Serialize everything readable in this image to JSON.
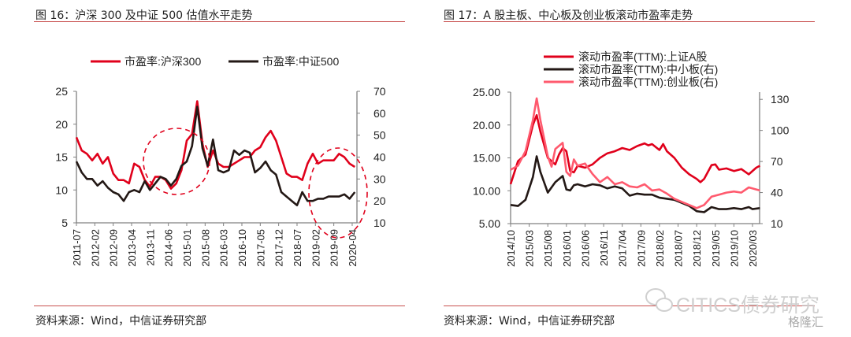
{
  "colors": {
    "red": "#e0001b",
    "black": "#231815",
    "pink": "#ff5a6e",
    "rule": "#c9504f"
  },
  "fig16": {
    "title": "图 16：沪深 300 及中证 500 估值水平走势",
    "source": "资料来源：Wind，中信证券研究部"
  },
  "fig17": {
    "title": "图 17：A 股主板、中心板及创业板滚动市盈率走势",
    "source": "资料来源：Wind，中信证券研究部"
  },
  "watermark": {
    "text": "CITICS债券研究",
    "logo": "格隆汇"
  },
  "chart_data": [
    {
      "type": "line",
      "title": "图 16：沪深 300 及中证 500 估值水平走势",
      "x_unit": "months since 2011-07",
      "xticks": [
        "2011-07",
        "2012-02",
        "2012-09",
        "2013-04",
        "2013-11",
        "2014-06",
        "2015-01",
        "2015-08",
        "2016-03",
        "2016-10",
        "2017-05",
        "2017-12",
        "2018-07",
        "2019-02",
        "2019-09",
        "2020-04"
      ],
      "xtick_step_months": 7,
      "xlim": [
        0,
        107
      ],
      "ylim_left": [
        5,
        25
      ],
      "yticks_left": [
        "5",
        "10",
        "15",
        "20",
        "25"
      ],
      "ylim_right": [
        10,
        70
      ],
      "yticks_right": [
        "10",
        "20",
        "30",
        "40",
        "50",
        "60",
        "70"
      ],
      "legend_position": "top",
      "series": [
        {
          "name": "市盈率:沪深300",
          "axis": "left",
          "color": "#e0001b",
          "x": [
            0,
            2,
            4,
            6,
            8,
            10,
            12,
            14,
            16,
            18,
            20,
            22,
            24,
            26,
            28,
            30,
            32,
            34,
            36,
            38,
            40,
            42,
            44,
            46,
            48,
            50,
            52,
            54,
            56,
            58,
            60,
            62,
            64,
            66,
            68,
            70,
            72,
            74,
            76,
            78,
            80,
            82,
            84,
            86,
            88,
            90,
            92,
            94,
            96,
            98,
            100,
            102,
            104,
            106
          ],
          "y": [
            18,
            16,
            15.5,
            14.5,
            15.5,
            14,
            15,
            12.5,
            11.5,
            11.5,
            11,
            14,
            13.5,
            11.5,
            10.5,
            12,
            12,
            11.5,
            10.2,
            11,
            13,
            17.5,
            18.5,
            23.5,
            17,
            13.5,
            16,
            14,
            13.5,
            13.5,
            14,
            14.5,
            15,
            15,
            16,
            16.5,
            18,
            19,
            17.5,
            15,
            12.5,
            12,
            12,
            11.5,
            14,
            15.5,
            14,
            14.5,
            14.5,
            14.5,
            15.5,
            15,
            14,
            13.5
          ]
        },
        {
          "name": "市盈率:中证500",
          "axis": "right",
          "color": "#231815",
          "x": [
            0,
            2,
            4,
            6,
            8,
            10,
            12,
            14,
            16,
            18,
            20,
            22,
            24,
            26,
            28,
            30,
            32,
            34,
            36,
            38,
            40,
            42,
            44,
            46,
            48,
            50,
            52,
            54,
            56,
            58,
            60,
            62,
            64,
            66,
            68,
            70,
            72,
            74,
            76,
            78,
            80,
            82,
            84,
            86,
            88,
            90,
            92,
            94,
            96,
            98,
            100,
            102,
            104,
            106
          ],
          "y": [
            38,
            33,
            30,
            30,
            27,
            29,
            26,
            24,
            23,
            20,
            24,
            25,
            24,
            29,
            25,
            28,
            31,
            30,
            27,
            30,
            36,
            38,
            45,
            63,
            44,
            36,
            48,
            34,
            33,
            34,
            43,
            41,
            43,
            42,
            33,
            35,
            38,
            34,
            32,
            24,
            22,
            20,
            18,
            24,
            20,
            20,
            21,
            21,
            22,
            22,
            22,
            23,
            21,
            24
          ]
        }
      ]
    },
    {
      "type": "line",
      "title": "图 17：A 股主板、中心板及创业板滚动市盈率走势",
      "x_unit": "months since 2014-10",
      "xticks": [
        "2014/10",
        "2015/03",
        "2015/08",
        "2016/01",
        "2016/06",
        "2016/11",
        "2017/04",
        "2017/09",
        "2018/02",
        "2018/07",
        "2018/12",
        "2019/05",
        "2019/10",
        "2020/03"
      ],
      "xtick_step_months": 5,
      "xlim": [
        0,
        67
      ],
      "ylim_left": [
        5,
        25
      ],
      "yticks_left": [
        "5.00",
        "10.00",
        "15.00",
        "20.00",
        "25.00"
      ],
      "ylim_right": [
        10,
        137
      ],
      "yticks_right": [
        "10",
        "40",
        "70",
        "100",
        "130"
      ],
      "legend_position": "top",
      "series": [
        {
          "name": "滚动市盈率(TTM):上证A股",
          "axis": "left",
          "color": "#e0001b",
          "x": [
            0,
            2,
            4,
            6,
            7,
            8,
            10,
            12,
            13,
            14,
            15,
            16,
            17,
            18,
            20,
            22,
            24,
            26,
            28,
            30,
            32,
            34,
            36,
            37,
            38,
            40,
            41,
            42,
            44,
            46,
            48,
            50,
            51,
            52,
            54,
            55,
            56,
            58,
            60,
            62,
            64,
            66,
            67
          ],
          "y": [
            11,
            14.5,
            15.5,
            20,
            21.5,
            19,
            15,
            14,
            15.5,
            16.5,
            16,
            13,
            12.8,
            13.8,
            13.5,
            14,
            15,
            15.7,
            16,
            16.5,
            16.2,
            16.8,
            17.2,
            16.9,
            17.1,
            16.2,
            17.1,
            16,
            15,
            13.5,
            12.5,
            11.8,
            11.3,
            11.8,
            13.9,
            14,
            13.2,
            13.4,
            13,
            13.3,
            12.5,
            13.5,
            13.8
          ]
        },
        {
          "name": "滚动市盈率(TTM):中小板(右)",
          "axis": "right",
          "color": "#231815",
          "x": [
            0,
            2,
            4,
            6,
            7,
            8,
            10,
            12,
            14,
            15,
            16,
            17,
            18,
            20,
            22,
            24,
            26,
            28,
            30,
            32,
            34,
            36,
            38,
            40,
            42,
            44,
            46,
            48,
            50,
            52,
            54,
            56,
            58,
            60,
            62,
            64,
            65,
            67
          ],
          "y": [
            28,
            27,
            33,
            55,
            75,
            60,
            40,
            50,
            56,
            43,
            42,
            47,
            48,
            46,
            48,
            47,
            44,
            46,
            44,
            37,
            39,
            38,
            38,
            35,
            34,
            33,
            30,
            27,
            22,
            21,
            26,
            24,
            24,
            25,
            24,
            26,
            24,
            25
          ]
        },
        {
          "name": "滚动市盈率(TTM):创业板(右)",
          "axis": "right",
          "color": "#ff5a6e",
          "x": [
            0,
            2,
            4,
            6,
            7,
            8,
            10,
            11,
            12,
            14,
            15,
            16,
            17,
            18,
            20,
            22,
            24,
            26,
            28,
            30,
            32,
            34,
            36,
            38,
            40,
            42,
            44,
            46,
            48,
            50,
            52,
            54,
            56,
            58,
            60,
            62,
            64,
            66,
            67
          ],
          "y": [
            62,
            66,
            80,
            110,
            131,
            110,
            75,
            65,
            82,
            88,
            60,
            56,
            72,
            66,
            68,
            58,
            50,
            55,
            48,
            50,
            46,
            45,
            48,
            42,
            43,
            39,
            34,
            31,
            28,
            25,
            28,
            36,
            38,
            40,
            41,
            40,
            45,
            43,
            42
          ]
        }
      ]
    }
  ]
}
